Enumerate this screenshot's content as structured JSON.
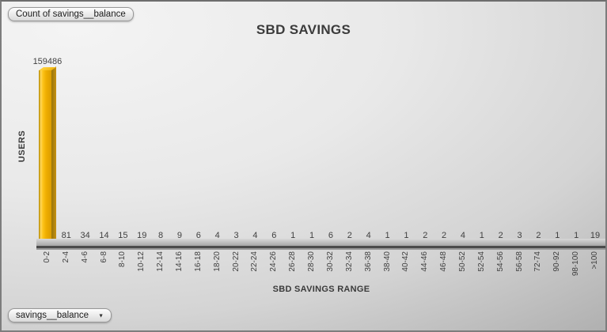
{
  "chrome": {
    "pivot_field_button": "Count of savings__balance",
    "axis_field_button": "savings__balance",
    "dropdown_icon": "▼"
  },
  "chart_data": {
    "type": "bar",
    "style": "3d-column",
    "title": "SBD SAVINGS",
    "xlabel": "SBD SAVINGS RANGE",
    "ylabel": "USERS",
    "legend": "none",
    "grid": false,
    "data_labels": true,
    "bar_color": "#F0B000",
    "floor_color": "#BDBDBD",
    "ylim": [
      0,
      159486
    ],
    "categories": [
      "0-2",
      "2-4",
      "4-6",
      "6-8",
      "8-10",
      "10-12",
      "12-14",
      "14-16",
      "16-18",
      "18-20",
      "20-22",
      "22-24",
      "24-26",
      "26-28",
      "28-30",
      "30-32",
      "32-34",
      "36-38",
      "38-40",
      "40-42",
      "44-46",
      "46-48",
      "50-52",
      "52-54",
      "54-56",
      "56-58",
      "72-74",
      "90-92",
      "98-100",
      ">100"
    ],
    "values": [
      159486,
      81,
      34,
      14,
      15,
      19,
      8,
      9,
      6,
      4,
      3,
      4,
      6,
      1,
      1,
      6,
      2,
      4,
      1,
      1,
      2,
      2,
      4,
      1,
      2,
      3,
      2,
      1,
      1,
      19
    ]
  }
}
